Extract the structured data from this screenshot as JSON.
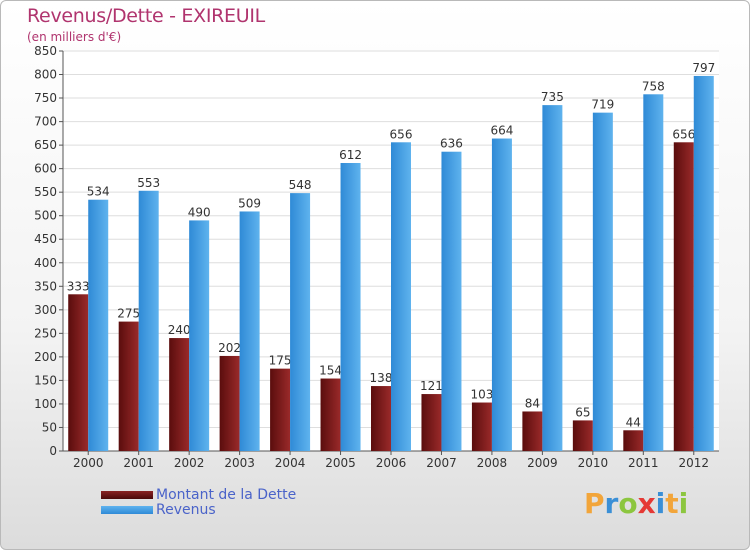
{
  "chart_data": {
    "type": "bar",
    "title": "Revenus/Dette - EXIREUIL",
    "subtitle": "(en milliers d'€)",
    "categories": [
      "2000",
      "2001",
      "2002",
      "2003",
      "2004",
      "2005",
      "2006",
      "2007",
      "2008",
      "2009",
      "2010",
      "2011",
      "2012"
    ],
    "series": [
      {
        "name": "Montant de la Dette",
        "color": "#7a1a1a",
        "values": [
          333,
          275,
          240,
          202,
          175,
          154,
          138,
          121,
          103,
          84,
          65,
          44,
          656
        ]
      },
      {
        "name": "Revenus",
        "color": "#3b9be0",
        "values": [
          534,
          553,
          490,
          509,
          548,
          612,
          656,
          636,
          664,
          735,
          719,
          758,
          797
        ]
      }
    ],
    "ylim": [
      0,
      850
    ],
    "ytick_step": 50,
    "grid": true,
    "legend_position": "bottom-left"
  },
  "brand": {
    "letters": [
      "P",
      "r",
      "o",
      "x",
      "i",
      "t",
      "i"
    ],
    "colors": [
      "#f2a53a",
      "#3a8fd6",
      "#8cc63f",
      "#e53935",
      "#3a8fd6",
      "#f2a53a",
      "#8cc63f"
    ]
  }
}
